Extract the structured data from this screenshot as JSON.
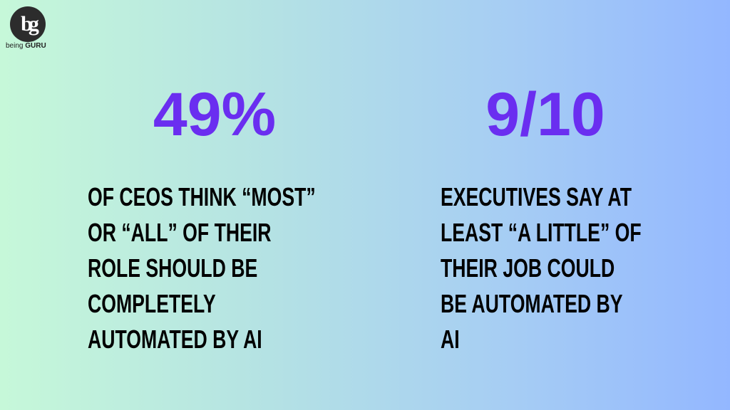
{
  "logo": {
    "mark": "bg",
    "brand_prefix": "being",
    "brand_name": "GURU"
  },
  "stats": [
    {
      "value": "49%",
      "lines": [
        "OF CEOS THINK “MOST”",
        "OR “ALL” OF THEIR",
        "ROLE SHOULD BE",
        "COMPLETELY",
        "AUTOMATED BY AI"
      ]
    },
    {
      "value": "9/10",
      "lines": [
        "EXECUTIVES SAY AT",
        "LEAST “A LITTLE” OF",
        "THEIR JOB COULD",
        "BE AUTOMATED BY",
        "AI"
      ]
    }
  ]
}
